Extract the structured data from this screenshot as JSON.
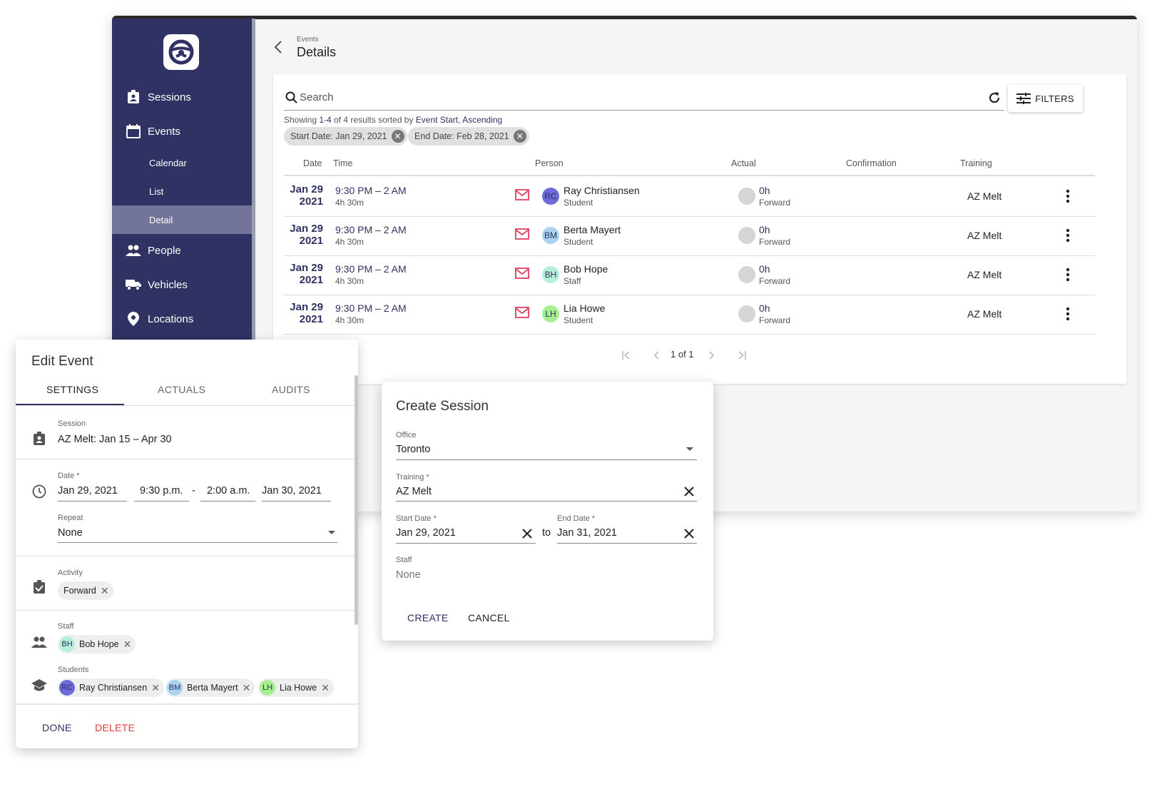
{
  "app": {
    "breadcrumb_parent": "Events",
    "page_title": "Details"
  },
  "sidebar": {
    "items": [
      {
        "label": "Sessions",
        "icon": "badge-icon"
      },
      {
        "label": "Events",
        "icon": "calendar-icon"
      },
      {
        "label": "Calendar"
      },
      {
        "label": "List"
      },
      {
        "label": "Detail",
        "active": true
      },
      {
        "label": "People",
        "icon": "people-icon"
      },
      {
        "label": "Vehicles",
        "icon": "truck-icon"
      },
      {
        "label": "Locations",
        "icon": "location-pin-icon"
      }
    ]
  },
  "search": {
    "placeholder": "Search",
    "filters_label": "FILTERS"
  },
  "results": {
    "prefix": "Showing ",
    "range": "1-4",
    "middle": " of 4 results sorted by ",
    "sort_field": "Event Start",
    "sep": ", ",
    "sort_dir": "Ascending"
  },
  "active_filters": [
    {
      "label": "Start Date: Jan 29, 2021"
    },
    {
      "label": "End Date: Feb 28, 2021"
    }
  ],
  "table": {
    "columns": [
      "Date",
      "Time",
      "Person",
      "Actual",
      "Confirmation",
      "Training"
    ],
    "rows": [
      {
        "date_md": "Jan 29",
        "date_y": "2021",
        "time": "9:30 PM – 2 AM",
        "duration": "4h 30m",
        "initials": "RC",
        "avatar_color": "#6b6bd9",
        "person": "Ray Christiansen",
        "role": "Student",
        "actual": "0h",
        "activity": "Forward",
        "training": "AZ Melt"
      },
      {
        "date_md": "Jan 29",
        "date_y": "2021",
        "time": "9:30 PM – 2 AM",
        "duration": "4h 30m",
        "initials": "BM",
        "avatar_color": "#a9d3ef",
        "person": "Berta Mayert",
        "role": "Student",
        "actual": "0h",
        "activity": "Forward",
        "training": "AZ Melt"
      },
      {
        "date_md": "Jan 29",
        "date_y": "2021",
        "time": "9:30 PM – 2 AM",
        "duration": "4h 30m",
        "initials": "BH",
        "avatar_color": "#b6f0d9",
        "person": "Bob Hope",
        "role": "Staff",
        "actual": "0h",
        "activity": "Forward",
        "training": "AZ Melt"
      },
      {
        "date_md": "Jan 29",
        "date_y": "2021",
        "time": "9:30 PM – 2 AM",
        "duration": "4h 30m",
        "initials": "LH",
        "avatar_color": "#a6ef8f",
        "person": "Lia Howe",
        "role": "Student",
        "actual": "0h",
        "activity": "Forward",
        "training": "AZ Melt"
      }
    ]
  },
  "pagination": {
    "label": "1 of 1"
  },
  "edit_event": {
    "title": "Edit Event",
    "tabs": [
      "SETTINGS",
      "ACTUALS",
      "AUDITS"
    ],
    "session_label": "Session",
    "session_value": "AZ Melt: Jan 15 – Apr 30",
    "date_label": "Date *",
    "start_date": "Jan 29, 2021",
    "start_time": "9:30 p.m.",
    "dash": "-",
    "end_time": "2:00 a.m.",
    "end_date": "Jan 30, 2021",
    "repeat_label": "Repeat",
    "repeat_value": "None",
    "activity_label": "Activity",
    "activity_chip": "Forward",
    "staff_label": "Staff",
    "staff": [
      {
        "initials": "BH",
        "name": "Bob Hope",
        "color": "#b6f0d9"
      }
    ],
    "students_label": "Students",
    "students": [
      {
        "initials": "RC",
        "name": "Ray Christiansen",
        "color": "#6b6bd9"
      },
      {
        "initials": "BM",
        "name": "Berta Mayert",
        "color": "#a9d3ef"
      },
      {
        "initials": "LH",
        "name": "Lia Howe",
        "color": "#a6ef8f"
      }
    ],
    "done_label": "DONE",
    "delete_label": "DELETE"
  },
  "create_session": {
    "title": "Create Session",
    "office_label": "Office",
    "office_value": "Toronto",
    "training_label": "Training *",
    "training_value": "AZ Melt",
    "start_label": "Start Date *",
    "start_value": "Jan 29, 2021",
    "to_label": "to",
    "end_label": "End Date *",
    "end_value": "Jan 31, 2021",
    "staff_label": "Staff",
    "staff_value": "None",
    "create_label": "CREATE",
    "cancel_label": "CANCEL"
  },
  "colors": {
    "brand": "#2f3263",
    "danger": "#e53935",
    "mail_icon": "#e0405a"
  }
}
